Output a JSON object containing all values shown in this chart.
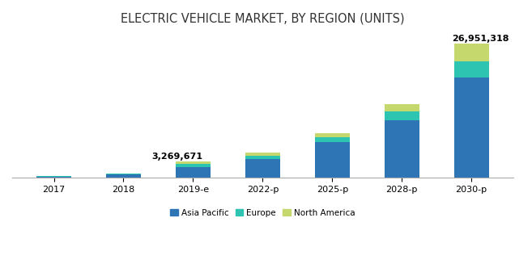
{
  "title": "ELECTRIC VEHICLE MARKET, BY REGION (UNITS)",
  "categories": [
    "2017",
    "2018",
    "2019-e",
    "2022-p",
    "2025-p",
    "2028-p",
    "2030-p"
  ],
  "asia_pacific": [
    320000,
    680000,
    2200000,
    3800000,
    7200000,
    11500000,
    20100000
  ],
  "europe": [
    70000,
    150000,
    570000,
    700000,
    900000,
    1800000,
    3200000
  ],
  "north_america": [
    50000,
    110000,
    499671,
    650000,
    900000,
    1500000,
    3651318
  ],
  "total_2019": "3,269,671",
  "total_2030": "26,951,318",
  "color_asia": "#2E75B6",
  "color_europe": "#2DC4B2",
  "color_north_america": "#C5D86D",
  "background_color": "#FFFFFF",
  "legend_labels": [
    "Asia Pacific",
    "Europe",
    "North America"
  ],
  "bar_width": 0.5,
  "ylim": [
    0,
    29000000
  ],
  "title_fontsize": 10.5,
  "annotation_fontsize": 8,
  "legend_fontsize": 7.5,
  "tick_fontsize": 8
}
